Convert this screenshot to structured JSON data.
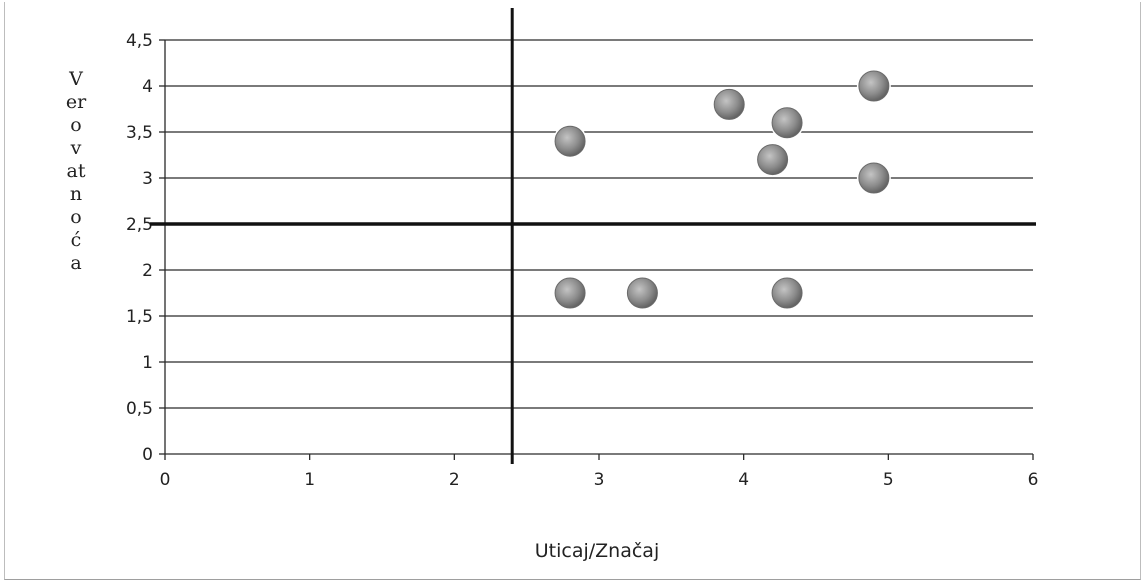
{
  "chart_data": {
    "type": "scatter",
    "xlabel": "Uticaj/Značaj",
    "ylabel_lines": [
      "V",
      "er",
      "o",
      "v",
      "at",
      "n",
      "o",
      "ć",
      "a"
    ],
    "xlim": [
      0,
      6
    ],
    "ylim": [
      0,
      4.5
    ],
    "x_ticks": [
      "0",
      "1",
      "2",
      "3",
      "4",
      "5",
      "6"
    ],
    "y_ticks": [
      "0",
      "0,5",
      "1",
      "1,5",
      "2",
      "2,5",
      "3",
      "3,5",
      "4",
      "4,5"
    ],
    "grid": true,
    "quadrant_lines": {
      "x": 2.4,
      "y": 2.5
    },
    "marker_color": "#8c8c8c",
    "points": [
      {
        "x": 2.8,
        "y": 3.4
      },
      {
        "x": 3.9,
        "y": 3.8
      },
      {
        "x": 4.3,
        "y": 3.6
      },
      {
        "x": 4.2,
        "y": 3.2
      },
      {
        "x": 4.9,
        "y": 4.0
      },
      {
        "x": 4.9,
        "y": 3.0
      },
      {
        "x": 2.8,
        "y": 1.75
      },
      {
        "x": 3.3,
        "y": 1.75
      },
      {
        "x": 4.3,
        "y": 1.75
      }
    ]
  }
}
